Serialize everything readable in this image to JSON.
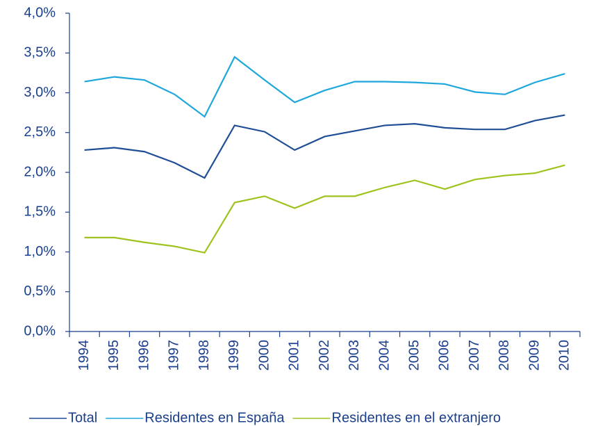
{
  "chart_data": {
    "type": "line",
    "categories": [
      "1994",
      "1995",
      "1996",
      "1997",
      "1998",
      "1999",
      "2000",
      "2001",
      "2002",
      "2003",
      "2004",
      "2005",
      "2006",
      "2007",
      "2008",
      "2009",
      "2010"
    ],
    "series": [
      {
        "name": "Total",
        "color": "#1f4e96",
        "values": [
          2.28,
          2.31,
          2.26,
          2.12,
          1.93,
          2.59,
          2.51,
          2.28,
          2.45,
          2.52,
          2.59,
          2.61,
          2.56,
          2.54,
          2.54,
          2.65,
          2.72
        ]
      },
      {
        "name": "Residentes en España",
        "color": "#1ea7dc",
        "values": [
          3.14,
          3.2,
          3.16,
          2.98,
          2.7,
          3.45,
          3.16,
          2.88,
          3.03,
          3.14,
          3.14,
          3.13,
          3.11,
          3.01,
          2.98,
          3.13,
          3.24
        ]
      },
      {
        "name": "Residentes en el extranjero",
        "color": "#9ec31c",
        "values": [
          1.18,
          1.18,
          1.12,
          1.07,
          0.99,
          1.62,
          1.7,
          1.55,
          1.7,
          1.7,
          1.81,
          1.9,
          1.79,
          1.91,
          1.96,
          1.99,
          2.09
        ]
      }
    ],
    "ylim": [
      0,
      4
    ],
    "yticks": [
      {
        "value": 0,
        "label": "0,0%"
      },
      {
        "value": 0.5,
        "label": "0,5%"
      },
      {
        "value": 1,
        "label": "1,0%"
      },
      {
        "value": 1.5,
        "label": "1,5%"
      },
      {
        "value": 2,
        "label": "2,0%"
      },
      {
        "value": 2.5,
        "label": "2,5%"
      },
      {
        "value": 3,
        "label": "3,0%"
      },
      {
        "value": 3.5,
        "label": "3,5%"
      },
      {
        "value": 4,
        "label": "4,0%"
      }
    ],
    "grid": false,
    "legend": "bottom"
  }
}
